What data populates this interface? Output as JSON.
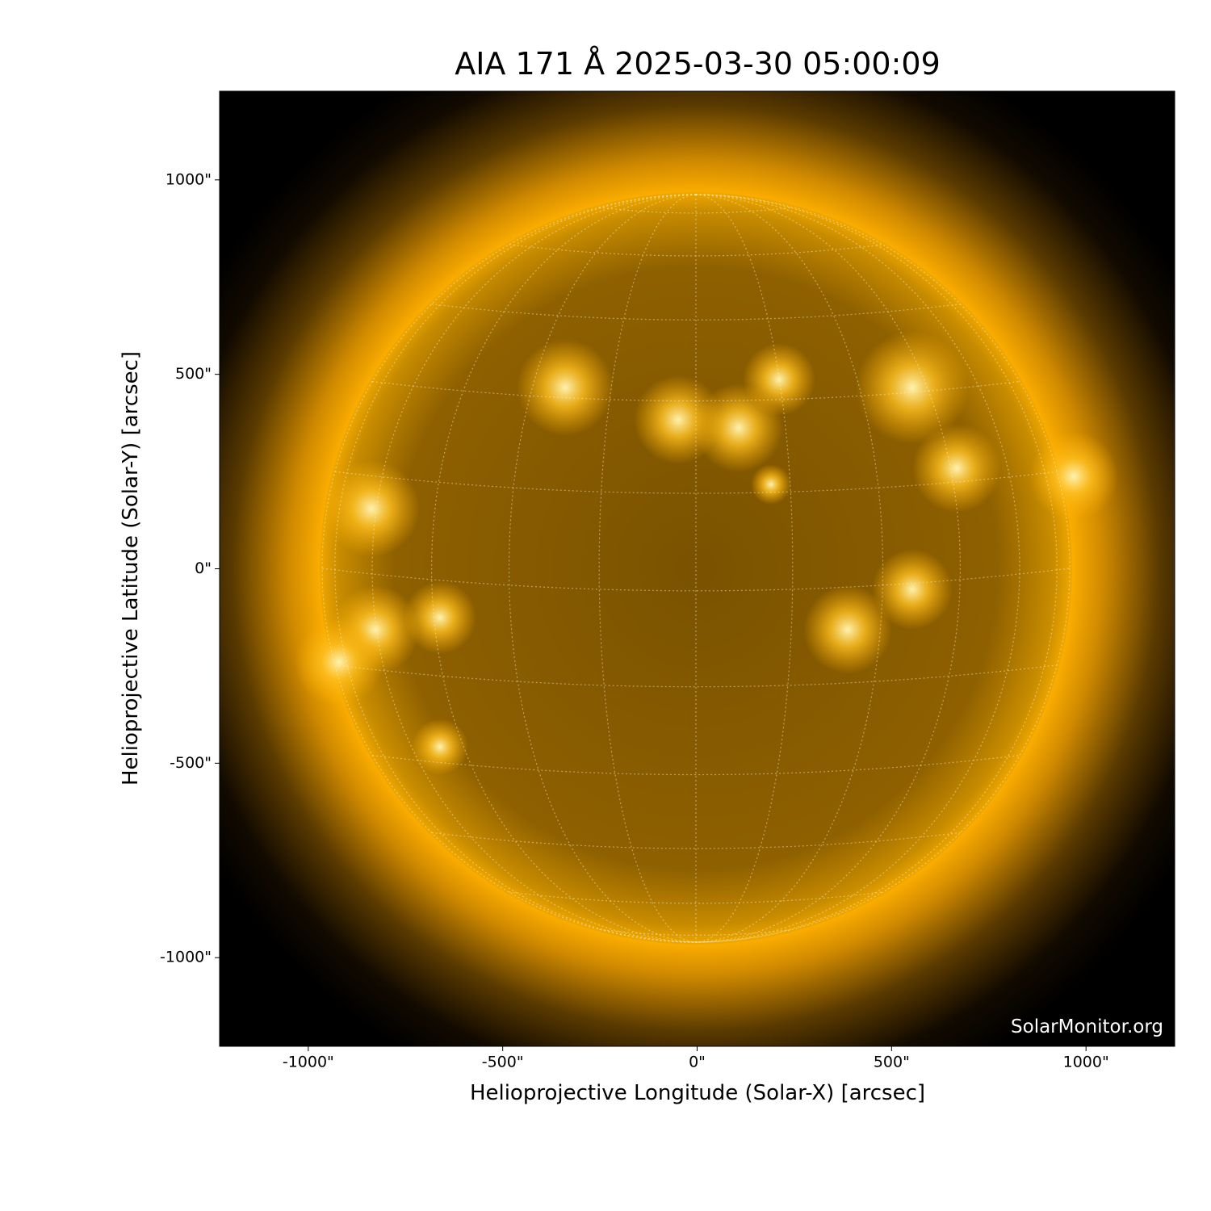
{
  "chart_data": {
    "type": "image",
    "title": "AIA 171 Å 2025-03-30 05:00:09",
    "xlabel": "Helioprojective Longitude (Solar-X) [arcsec]",
    "ylabel": "Helioprojective Latitude (Solar-Y) [arcsec]",
    "watermark": "SolarMonitor.org",
    "xlim": [
      -1228,
      1228
    ],
    "ylim": [
      -1228,
      1228
    ],
    "xticks": [
      {
        "value": -1000,
        "label": "-1000\""
      },
      {
        "value": -500,
        "label": "-500\""
      },
      {
        "value": 0,
        "label": "0\""
      },
      {
        "value": 500,
        "label": "500\""
      },
      {
        "value": 1000,
        "label": "1000\""
      }
    ],
    "yticks": [
      {
        "value": -1000,
        "label": "-1000\""
      },
      {
        "value": -500,
        "label": "-500\""
      },
      {
        "value": 0,
        "label": "0\""
      },
      {
        "value": 500,
        "label": "500\""
      },
      {
        "value": 1000,
        "label": "1000\""
      }
    ]
  }
}
